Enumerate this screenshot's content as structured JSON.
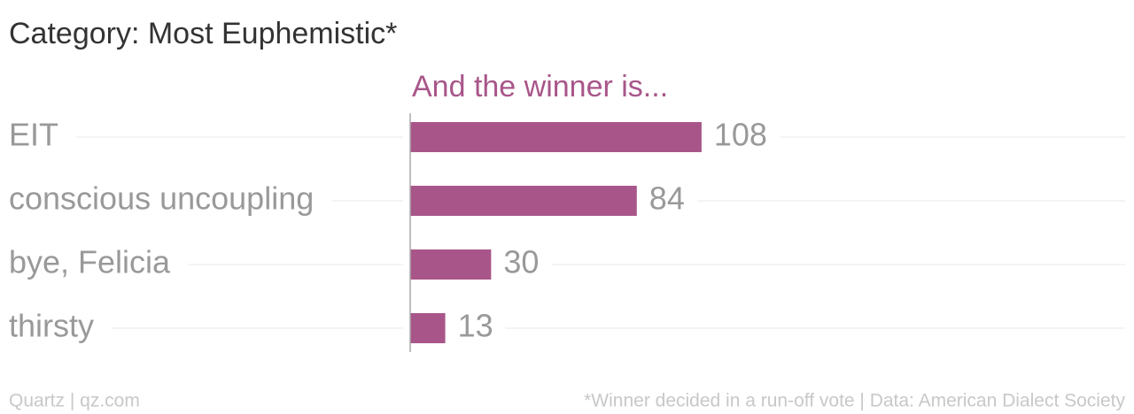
{
  "chart_data": {
    "type": "bar",
    "orientation": "horizontal",
    "title": "Category: Most Euphemistic*",
    "categories": [
      "EIT",
      "conscious uncoupling",
      "bye, Felicia",
      "thirsty"
    ],
    "series": [
      {
        "name": "And the winner is...",
        "color": "#a8568a",
        "values": [
          108,
          84,
          30,
          13
        ]
      }
    ],
    "xlim": [
      0,
      265
    ],
    "grid": true,
    "source_left": "Quartz | qz.com",
    "source_right": "*Winner decided in a run-off vote | Data: American Dialect Society"
  }
}
